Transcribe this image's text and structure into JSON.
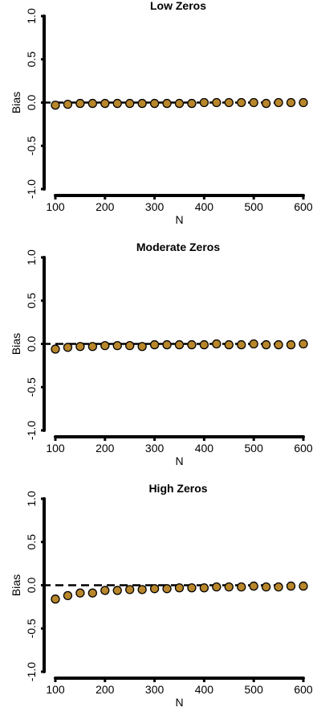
{
  "chart_data": [
    {
      "type": "scatter",
      "title": "Low Zeros",
      "xlabel": "N",
      "ylabel": "Bias",
      "xlim": [
        100,
        600
      ],
      "ylim": [
        -1.0,
        1.0
      ],
      "x_ticks": [
        "100",
        "200",
        "300",
        "400",
        "500",
        "600"
      ],
      "y_ticks": [
        "-1.0",
        "-0.5",
        "0.0",
        "0.5",
        "1.0"
      ],
      "reference_line": 0.0,
      "point_color": "#B8862B",
      "series": [
        {
          "x": [
            100,
            125,
            150,
            175,
            200,
            225,
            250,
            275,
            300,
            325,
            350,
            375,
            400,
            425,
            450,
            475,
            500,
            525,
            550,
            575,
            600
          ],
          "y": [
            -0.03,
            -0.02,
            -0.01,
            -0.01,
            -0.01,
            -0.01,
            -0.01,
            -0.01,
            -0.01,
            -0.01,
            -0.01,
            -0.01,
            0.0,
            0.0,
            0.0,
            0.0,
            0.0,
            -0.01,
            0.0,
            0.0,
            0.0
          ]
        }
      ]
    },
    {
      "type": "scatter",
      "title": "Moderate Zeros",
      "xlabel": "N",
      "ylabel": "Bias",
      "xlim": [
        100,
        600
      ],
      "ylim": [
        -1.0,
        1.0
      ],
      "x_ticks": [
        "100",
        "200",
        "300",
        "400",
        "500",
        "600"
      ],
      "y_ticks": [
        "-1.0",
        "-0.5",
        "0.0",
        "0.5",
        "1.0"
      ],
      "reference_line": 0.0,
      "point_color": "#B8862B",
      "series": [
        {
          "x": [
            100,
            125,
            150,
            175,
            200,
            225,
            250,
            275,
            300,
            325,
            350,
            375,
            400,
            425,
            450,
            475,
            500,
            525,
            550,
            575,
            600
          ],
          "y": [
            -0.06,
            -0.04,
            -0.03,
            -0.03,
            -0.02,
            -0.02,
            -0.02,
            -0.03,
            -0.01,
            -0.01,
            -0.01,
            -0.01,
            -0.01,
            0.0,
            -0.01,
            -0.01,
            0.0,
            -0.01,
            -0.01,
            -0.01,
            0.0
          ]
        }
      ]
    },
    {
      "type": "scatter",
      "title": "High Zeros",
      "xlabel": "N",
      "ylabel": "Bias",
      "xlim": [
        100,
        600
      ],
      "ylim": [
        -1.0,
        1.0
      ],
      "x_ticks": [
        "100",
        "200",
        "300",
        "400",
        "500",
        "600"
      ],
      "y_ticks": [
        "-1.0",
        "-0.5",
        "0.0",
        "0.5",
        "1.0"
      ],
      "reference_line": 0.0,
      "point_color": "#B8862B",
      "series": [
        {
          "x": [
            100,
            125,
            150,
            175,
            200,
            225,
            250,
            275,
            300,
            325,
            350,
            375,
            400,
            425,
            450,
            475,
            500,
            525,
            550,
            575,
            600
          ],
          "y": [
            -0.16,
            -0.12,
            -0.09,
            -0.09,
            -0.06,
            -0.06,
            -0.05,
            -0.05,
            -0.04,
            -0.04,
            -0.03,
            -0.03,
            -0.03,
            -0.02,
            -0.02,
            -0.02,
            -0.01,
            -0.02,
            -0.02,
            -0.01,
            -0.01
          ]
        }
      ]
    }
  ]
}
